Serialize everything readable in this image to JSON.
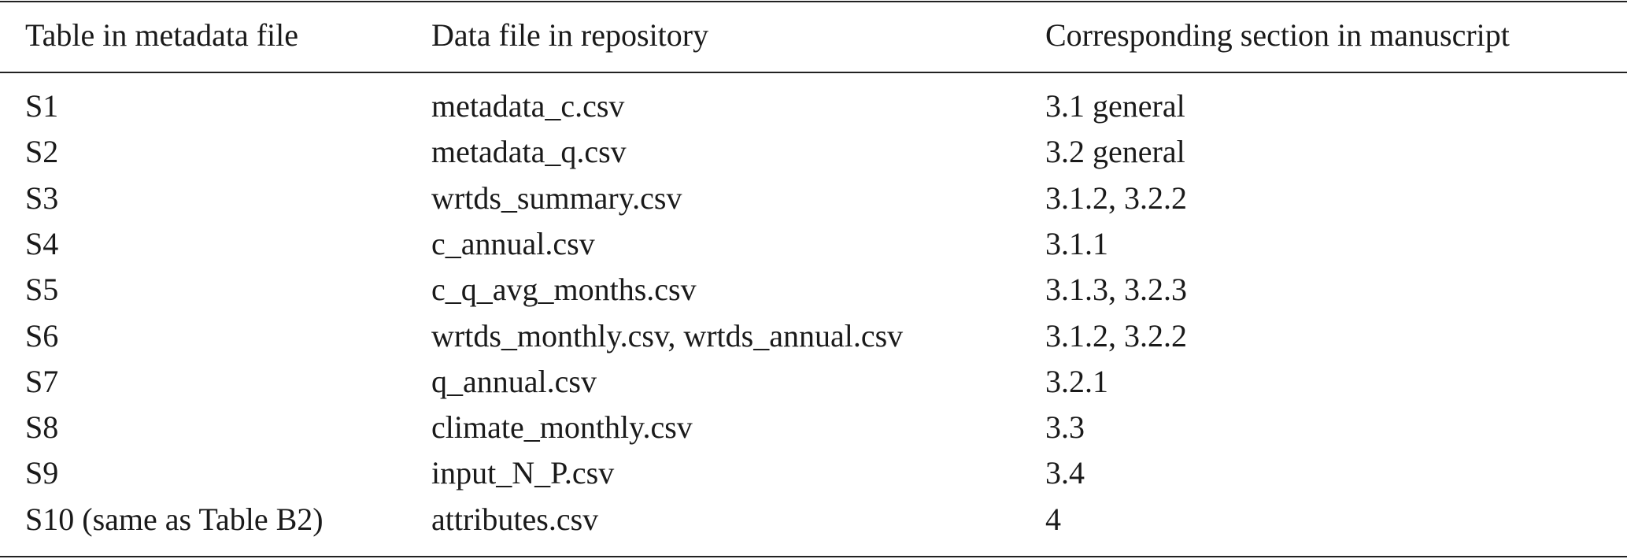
{
  "table": {
    "header": [
      "Table in metadata file",
      "Data file in repository",
      "Corresponding section in manuscript"
    ],
    "rows": [
      [
        "S1",
        "metadata_c.csv",
        "3.1 general"
      ],
      [
        "S2",
        "metadata_q.csv",
        "3.2 general"
      ],
      [
        "S3",
        "wrtds_summary.csv",
        "3.1.2, 3.2.2"
      ],
      [
        "S4",
        "c_annual.csv",
        "3.1.1"
      ],
      [
        "S5",
        "c_q_avg_months.csv",
        "3.1.3, 3.2.3"
      ],
      [
        "S6",
        "wrtds_monthly.csv, wrtds_annual.csv",
        "3.1.2, 3.2.2"
      ],
      [
        "S7",
        "q_annual.csv",
        "3.2.1"
      ],
      [
        "S8",
        "climate_monthly.csv",
        "3.3"
      ],
      [
        "S9",
        "input_N_P.csv",
        "3.4"
      ],
      [
        "S10 (same as Table B2)",
        "attributes.csv",
        "4"
      ]
    ]
  }
}
